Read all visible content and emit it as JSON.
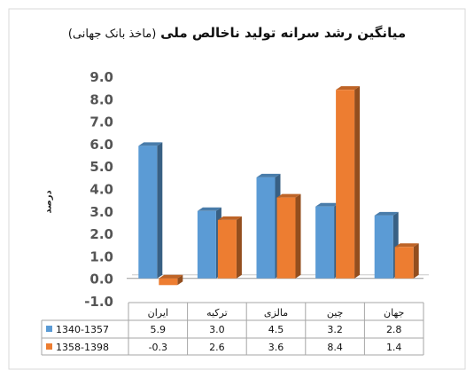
{
  "chart_data": {
    "type": "bar",
    "title": "میانگین رشد سرانه تولید ناخالص ملی",
    "subtitle": "(ماخذ بانک جهانی)",
    "ylabel": "درصد",
    "xlabel": "",
    "categories": [
      "ایران",
      "ترکیه",
      "مالزی",
      "چین",
      "جهان"
    ],
    "series": [
      {
        "name": "1340-1357",
        "values": [
          5.9,
          3.0,
          4.5,
          3.2,
          2.8
        ],
        "color": "#5B9BD5",
        "value_labels": [
          "5.9",
          "3.0",
          "4.5",
          "3.2",
          "2.8"
        ]
      },
      {
        "name": "1358-1398",
        "values": [
          -0.3,
          2.6,
          3.6,
          8.4,
          1.4
        ],
        "color": "#ED7D31",
        "value_labels": [
          "-0.3",
          "2.6",
          "3.6",
          "8.4",
          "1.4"
        ]
      }
    ],
    "ylim": [
      -1.0,
      9.0
    ],
    "yticks": [
      "9.0",
      "8.0",
      "7.0",
      "6.0",
      "5.0",
      "4.0",
      "3.0",
      "2.0",
      "1.0",
      "0.0",
      "-1.0"
    ],
    "grid": false,
    "data_table": true,
    "style": "3d-bar"
  }
}
